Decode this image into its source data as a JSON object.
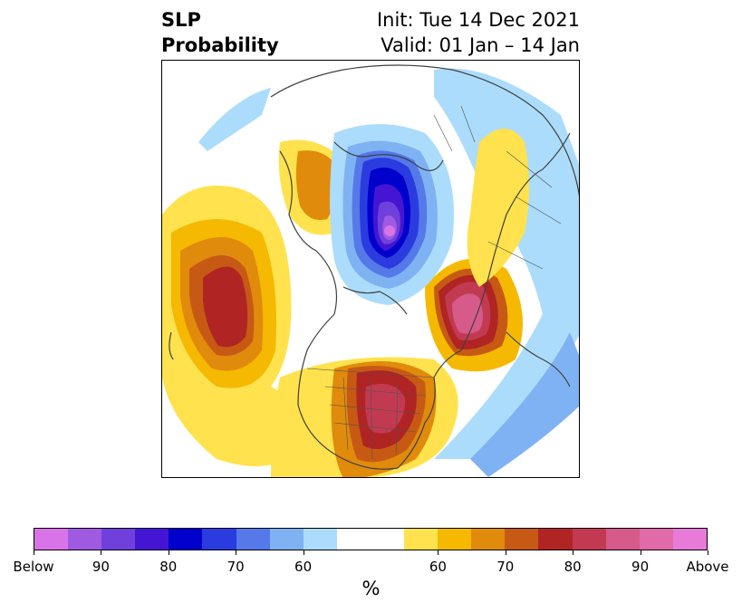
{
  "title": {
    "left_line1": "SLP",
    "left_line2": "Probability",
    "right_line1": "Init: Tue 14 Dec 2021",
    "right_line2": "Valid: 01 Jan – 14 Jan"
  },
  "map": {
    "projection": "north-polar-stereographic",
    "features": [
      "coastlines",
      "country-borders",
      "us-state-borders"
    ]
  },
  "colorbar": {
    "colors": [
      "#d974e8",
      "#a05ae2",
      "#7040dc",
      "#4416d4",
      "#0000cd",
      "#2a3ce0",
      "#5579e9",
      "#7fb2f3",
      "#acdcfb",
      "#ffffff",
      "#ffffff",
      "#ffe24d",
      "#f4b900",
      "#e08b0c",
      "#c65a14",
      "#b02424",
      "#c23a52",
      "#d65a8a",
      "#e06aaa",
      "#e87ad8"
    ],
    "tick_labels": [
      "Below",
      "90",
      "80",
      "70",
      "60",
      "60",
      "70",
      "80",
      "90",
      "Above"
    ],
    "tick_boundaries": [
      0,
      2,
      4,
      6,
      8,
      12,
      14,
      16,
      18,
      20
    ],
    "unit_label": "%"
  }
}
